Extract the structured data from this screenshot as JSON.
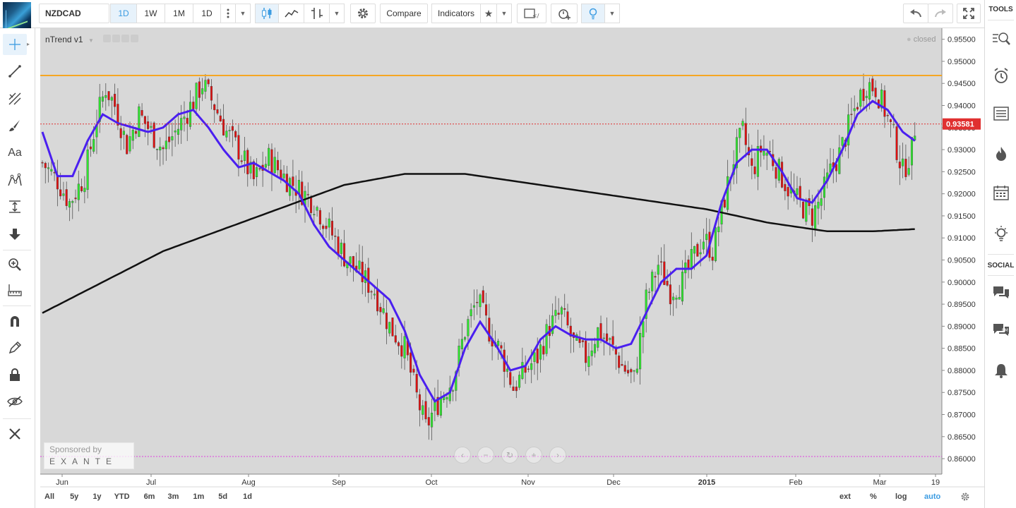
{
  "toolbar": {
    "symbol": "NZDCAD",
    "interval_active": "1D",
    "intervals": [
      "1W",
      "1M",
      "1D"
    ],
    "compare_label": "Compare",
    "indicators_label": "Indicators"
  },
  "chart_header": {
    "indicator_name": "nTrend v1",
    "market_status": "closed"
  },
  "sponsor": {
    "line1": "Sponsored by",
    "line2": "EXANTE"
  },
  "right_sidebar": {
    "tools_title": "TOOLS",
    "social_title": "SOCIAL"
  },
  "bottom_ranges": [
    "All",
    "5y",
    "1y",
    "YTD",
    "6m",
    "3m",
    "1m",
    "5d",
    "1d"
  ],
  "bottom_right": {
    "ext": "ext",
    "percent": "%",
    "log": "log",
    "auto": "auto"
  },
  "colors": {
    "up": "#2ee82e",
    "down": "#e01010",
    "resistance": "#f5a623",
    "support": "#e040e0",
    "price_line": "#e03030",
    "ma_fast": "#4a1ff0",
    "ma_slow": "#111111",
    "background": "#d8d8d8",
    "accent": "#3c9ce2"
  },
  "chart_data": {
    "type": "candlestick",
    "symbol": "NZDCAD",
    "timeframe": "1D",
    "ylim": [
      0.8565,
      0.9575
    ],
    "y_ticks": [
      "0.95500",
      "0.95000",
      "0.94500",
      "0.94000",
      "0.93500",
      "0.93000",
      "0.92500",
      "0.92000",
      "0.91500",
      "0.91000",
      "0.90500",
      "0.90000",
      "0.89500",
      "0.89000",
      "0.88500",
      "0.88000",
      "0.87500",
      "0.87000",
      "0.86500",
      "0.86000"
    ],
    "x_labels": [
      "Jun",
      "Jul",
      "Aug",
      "Sep",
      "Oct",
      "Nov",
      "Dec",
      "2015",
      "Feb",
      "Mar",
      "19"
    ],
    "last_price": "0.93581",
    "last_price_value": 0.93581,
    "resistance_level": 0.9468,
    "support_level": 0.8605,
    "close_path": [
      [
        0,
        0.927
      ],
      [
        5,
        0.923
      ],
      [
        9,
        0.918
      ],
      [
        14,
        0.924
      ],
      [
        18,
        0.937
      ],
      [
        21,
        0.944
      ],
      [
        24,
        0.94
      ],
      [
        28,
        0.931
      ],
      [
        32,
        0.938
      ],
      [
        36,
        0.934
      ],
      [
        40,
        0.93
      ],
      [
        45,
        0.935
      ],
      [
        50,
        0.941
      ],
      [
        53,
        0.945
      ],
      [
        57,
        0.94
      ],
      [
        61,
        0.934
      ],
      [
        65,
        0.93
      ],
      [
        70,
        0.923
      ],
      [
        75,
        0.928
      ],
      [
        80,
        0.924
      ],
      [
        85,
        0.921
      ],
      [
        90,
        0.918
      ],
      [
        95,
        0.912
      ],
      [
        100,
        0.906
      ],
      [
        105,
        0.902
      ],
      [
        110,
        0.898
      ],
      [
        115,
        0.89
      ],
      [
        120,
        0.885
      ],
      [
        124,
        0.874
      ],
      [
        127,
        0.867
      ],
      [
        129,
        0.87
      ],
      [
        132,
        0.874
      ],
      [
        136,
        0.878
      ],
      [
        140,
        0.889
      ],
      [
        144,
        0.896
      ],
      [
        148,
        0.889
      ],
      [
        152,
        0.884
      ],
      [
        156,
        0.876
      ],
      [
        160,
        0.88
      ],
      [
        164,
        0.883
      ],
      [
        168,
        0.89
      ],
      [
        172,
        0.893
      ],
      [
        176,
        0.886
      ],
      [
        180,
        0.883
      ],
      [
        184,
        0.889
      ],
      [
        188,
        0.886
      ],
      [
        192,
        0.881
      ],
      [
        196,
        0.878
      ],
      [
        200,
        0.896
      ],
      [
        204,
        0.904
      ],
      [
        208,
        0.898
      ],
      [
        212,
        0.9
      ],
      [
        216,
        0.906
      ],
      [
        219,
        0.91
      ],
      [
        222,
        0.907
      ],
      [
        226,
        0.919
      ],
      [
        229,
        0.928
      ],
      [
        232,
        0.934
      ],
      [
        235,
        0.925
      ],
      [
        238,
        0.93
      ],
      [
        241,
        0.929
      ],
      [
        244,
        0.925
      ],
      [
        248,
        0.92
      ],
      [
        252,
        0.917
      ],
      [
        255,
        0.915
      ],
      [
        258,
        0.919
      ],
      [
        261,
        0.925
      ],
      [
        264,
        0.929
      ],
      [
        267,
        0.935
      ],
      [
        270,
        0.941
      ],
      [
        273,
        0.945
      ],
      [
        276,
        0.944
      ],
      [
        279,
        0.939
      ],
      [
        282,
        0.933
      ],
      [
        285,
        0.925
      ],
      [
        288,
        0.93
      ],
      [
        289,
        0.935
      ]
    ],
    "ma_fast_path": [
      [
        0,
        0.934
      ],
      [
        5,
        0.924
      ],
      [
        10,
        0.924
      ],
      [
        15,
        0.932
      ],
      [
        20,
        0.938
      ],
      [
        25,
        0.936
      ],
      [
        30,
        0.935
      ],
      [
        35,
        0.934
      ],
      [
        40,
        0.935
      ],
      [
        45,
        0.938
      ],
      [
        50,
        0.939
      ],
      [
        55,
        0.935
      ],
      [
        60,
        0.93
      ],
      [
        65,
        0.926
      ],
      [
        70,
        0.927
      ],
      [
        75,
        0.925
      ],
      [
        80,
        0.923
      ],
      [
        85,
        0.92
      ],
      [
        90,
        0.913
      ],
      [
        95,
        0.908
      ],
      [
        100,
        0.905
      ],
      [
        105,
        0.902
      ],
      [
        110,
        0.899
      ],
      [
        115,
        0.896
      ],
      [
        120,
        0.889
      ],
      [
        125,
        0.879
      ],
      [
        130,
        0.873
      ],
      [
        135,
        0.875
      ],
      [
        140,
        0.885
      ],
      [
        145,
        0.891
      ],
      [
        150,
        0.886
      ],
      [
        155,
        0.88
      ],
      [
        160,
        0.881
      ],
      [
        165,
        0.887
      ],
      [
        170,
        0.89
      ],
      [
        175,
        0.888
      ],
      [
        180,
        0.887
      ],
      [
        185,
        0.887
      ],
      [
        190,
        0.885
      ],
      [
        195,
        0.886
      ],
      [
        200,
        0.893
      ],
      [
        205,
        0.9
      ],
      [
        210,
        0.903
      ],
      [
        215,
        0.903
      ],
      [
        220,
        0.906
      ],
      [
        225,
        0.918
      ],
      [
        230,
        0.927
      ],
      [
        235,
        0.93
      ],
      [
        240,
        0.93
      ],
      [
        245,
        0.925
      ],
      [
        250,
        0.919
      ],
      [
        255,
        0.918
      ],
      [
        260,
        0.923
      ],
      [
        265,
        0.93
      ],
      [
        270,
        0.938
      ],
      [
        275,
        0.941
      ],
      [
        280,
        0.939
      ],
      [
        285,
        0.934
      ],
      [
        289,
        0.932
      ]
    ],
    "ma_slow_path": [
      [
        0,
        0.893
      ],
      [
        20,
        0.9
      ],
      [
        40,
        0.907
      ],
      [
        60,
        0.912
      ],
      [
        80,
        0.917
      ],
      [
        100,
        0.922
      ],
      [
        120,
        0.9245
      ],
      [
        140,
        0.9245
      ],
      [
        160,
        0.9225
      ],
      [
        180,
        0.9205
      ],
      [
        200,
        0.9185
      ],
      [
        220,
        0.9165
      ],
      [
        240,
        0.9135
      ],
      [
        260,
        0.9115
      ],
      [
        275,
        0.9115
      ],
      [
        289,
        0.912
      ]
    ]
  }
}
